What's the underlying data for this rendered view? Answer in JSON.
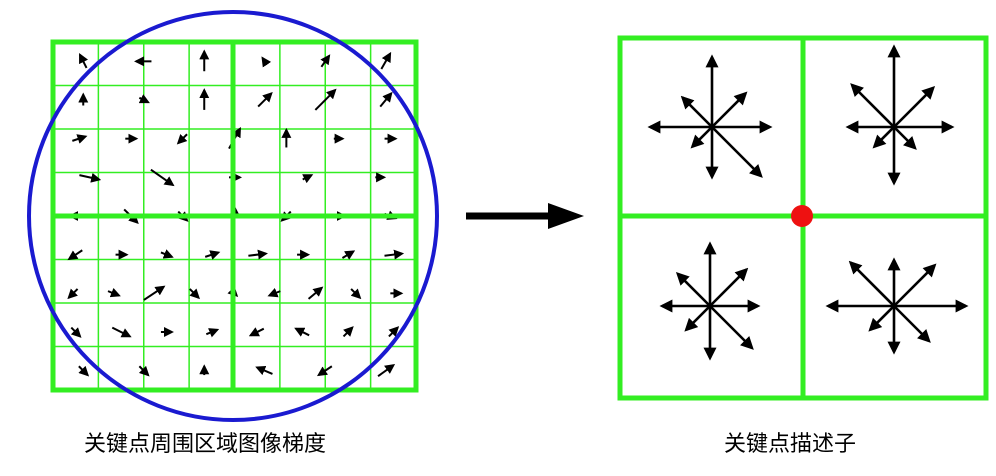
{
  "captions": {
    "left": "关键点周围区域图像梯度",
    "right": "关键点描述子"
  },
  "colors": {
    "grid": "#33ee22",
    "circle": "#1a1ad0",
    "arrow": "#000000",
    "keypoint": "#ee1111"
  },
  "grid": {
    "cells_per_side": 8,
    "blocks_per_side": 2
  },
  "gradient_field": [
    [
      [
        -0.3,
        0.6
      ],
      [
        -0.7,
        0
      ],
      [
        0,
        0.9
      ],
      [
        -0.2,
        0.3
      ],
      [
        0.35,
        0.5
      ],
      [
        0.4,
        0.7
      ]
    ],
    [
      [
        0,
        0.5
      ],
      [
        0.4,
        -0.2
      ],
      [
        0,
        0.9
      ],
      [
        0.6,
        0.6
      ],
      [
        0.9,
        0.9
      ],
      [
        0.5,
        0.6
      ]
    ],
    [
      [
        0.6,
        0.2
      ],
      [
        0.5,
        0
      ],
      [
        -0.4,
        -0.4
      ],
      [
        0.5,
        0.9
      ],
      [
        0,
        0.8
      ],
      [
        0.4,
        0
      ],
      [
        0.5,
        0
      ]
    ],
    [
      [
        0.9,
        -0.2
      ],
      [
        1,
        -0.7
      ],
      [
        0.5,
        0
      ],
      [
        0.4,
        0.2
      ],
      [
        0.4,
        0
      ]
    ],
    [
      [
        -0.8,
        0
      ],
      [
        0.6,
        -0.6
      ],
      [
        0.4,
        -0.4
      ],
      [
        0,
        0.8
      ],
      [
        -0.4,
        -0.4
      ],
      [
        0.6,
        0
      ],
      [
        0.5,
        -0.2
      ]
    ],
    [
      [
        -0.6,
        -0.4
      ],
      [
        0.5,
        0
      ],
      [
        0.5,
        -0.2
      ],
      [
        0.6,
        0.2
      ],
      [
        0.8,
        0.1
      ],
      [
        0.5,
        0
      ],
      [
        0.5,
        0.3
      ],
      [
        0.8,
        0.1
      ]
    ],
    [
      [
        -0.4,
        -0.4
      ],
      [
        0.5,
        -0.2
      ],
      [
        0.9,
        0.6
      ],
      [
        0.4,
        -0.4
      ],
      [
        0.2,
        -0.2
      ],
      [
        -0.5,
        -0.2
      ],
      [
        0.6,
        0.5
      ],
      [
        0.4,
        -0.4
      ],
      [
        0.5,
        0
      ]
    ],
    [
      [
        0.4,
        -0.4
      ],
      [
        0.8,
        -0.4
      ],
      [
        0.5,
        0
      ],
      [
        0.5,
        0.2
      ],
      [
        -0.6,
        -0.3
      ],
      [
        -0.6,
        0.3
      ],
      [
        0.4,
        0.4
      ],
      [
        0.4,
        0.4
      ]
    ],
    [
      [
        0.4,
        -0.4
      ],
      [
        0.4,
        -0.4
      ],
      [
        0,
        0.4
      ],
      [
        -0.7,
        0.3
      ],
      [
        -0.6,
        -0.4
      ],
      [
        0.7,
        0.5
      ]
    ]
  ],
  "descriptor": [
    [
      [
        0,
        1
      ],
      [
        1,
        0
      ],
      [
        0,
        -1
      ],
      [
        -1,
        0
      ],
      [
        0.7,
        0.7
      ],
      [
        -0.7,
        0.7
      ],
      [
        0.7,
        -0.7
      ],
      [
        -0.7,
        -0.7
      ]
    ],
    [
      [
        0,
        1
      ],
      [
        1,
        0
      ],
      [
        0,
        -1
      ],
      [
        -1,
        0
      ],
      [
        0.7,
        0.7
      ],
      [
        -0.7,
        0.7
      ],
      [
        0.7,
        -0.7
      ],
      [
        -0.7,
        -0.7
      ]
    ],
    [
      [
        0,
        1
      ],
      [
        1,
        0
      ],
      [
        0,
        -1
      ],
      [
        -1,
        0
      ],
      [
        0.7,
        0.7
      ],
      [
        -0.7,
        0.7
      ],
      [
        0.7,
        -0.7
      ],
      [
        -0.7,
        -0.7
      ]
    ],
    [
      [
        0,
        1
      ],
      [
        1,
        0
      ],
      [
        0,
        -1
      ],
      [
        -1,
        0
      ],
      [
        0.7,
        0.7
      ],
      [
        -0.7,
        0.7
      ],
      [
        0.7,
        -0.7
      ],
      [
        -0.7,
        -0.7
      ]
    ]
  ]
}
